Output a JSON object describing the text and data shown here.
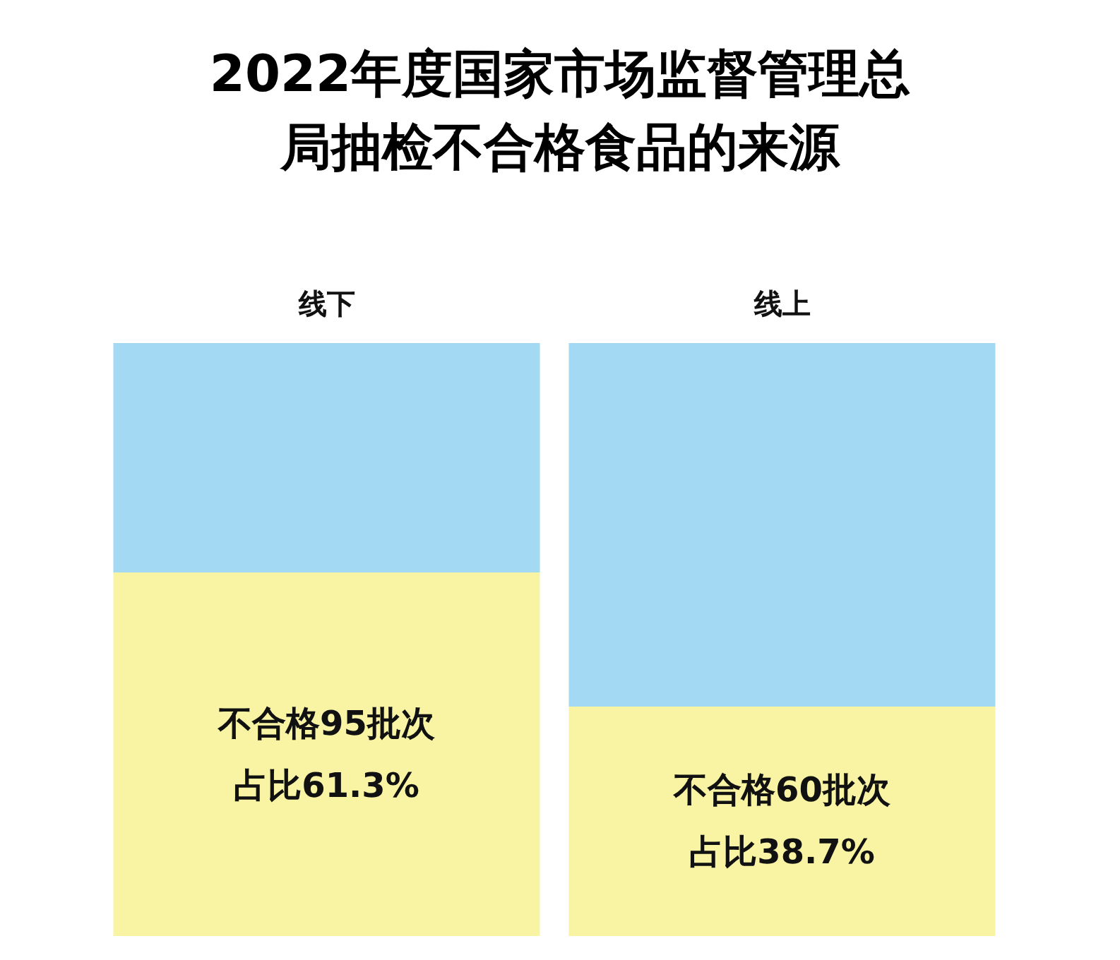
{
  "chart_data": {
    "type": "bar",
    "title": "2022年度国家市场监督管理总局抽检不合格食品的来源",
    "categories": [
      "线下",
      "线上"
    ],
    "stacked": true,
    "ylim": [
      0,
      100
    ],
    "tick_labels": "x",
    "series": [
      {
        "color": "#f8f4a4",
        "values": [
          61.3,
          38.7
        ],
        "value_labels": [
          "不合格95批次占比61.3%",
          "不合格60批次占比38.7%"
        ]
      },
      {
        "color": "#a3d9f3",
        "values": [
          38.7,
          61.3
        ]
      }
    ]
  }
}
